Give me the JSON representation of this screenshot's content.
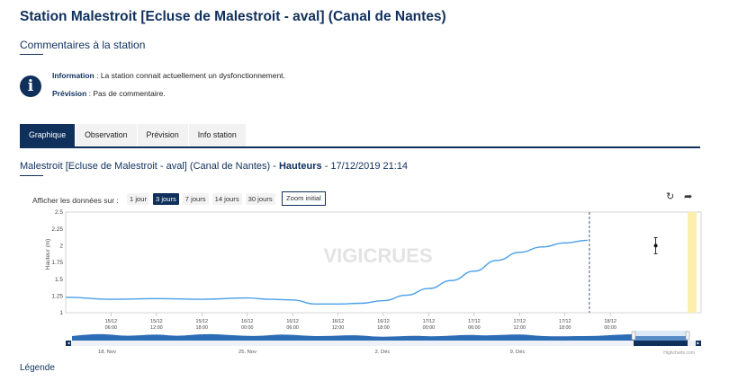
{
  "page": {
    "title": "Station Malestroit [Ecluse de Malestroit - aval] (Canal de Nantes)",
    "comments_heading": "Commentaires à la station",
    "info_icon": "info-circle-icon",
    "information_label": "Information",
    "information_text": " : La station connait actuellement un dysfonctionnement.",
    "prevision_label": "Prévision",
    "prevision_text": " : Pas de commentaire.",
    "legend_link": "Légende",
    "accent_color": "#10305c"
  },
  "tabs": [
    {
      "label": "Graphique",
      "active": true
    },
    {
      "label": "Observation",
      "active": false
    },
    {
      "label": "Prévision",
      "active": false
    },
    {
      "label": "Info station",
      "active": false
    }
  ],
  "chart_header": {
    "station": "Malestroit [Ecluse de Malestroit - aval] (Canal de Nantes) - ",
    "measure": "Hauteurs",
    "datetime": " - 17/12/2019 21:14"
  },
  "range_selector": {
    "label": "Afficher les données sur :",
    "buttons": [
      {
        "label": "1 jour",
        "active": false
      },
      {
        "label": "3 jours",
        "active": true
      },
      {
        "label": "7 jours",
        "active": false
      },
      {
        "label": "14 jours",
        "active": false
      },
      {
        "label": "30 jours",
        "active": false
      }
    ],
    "zoom_label": "Zoom initial",
    "refresh_icon": "refresh-icon",
    "export_icon": "share-arrow-icon"
  },
  "chart_data": {
    "type": "line",
    "watermark": "VIGICRUES",
    "ylabel": "Hauteur (m)",
    "ylim": [
      1,
      2.5
    ],
    "yticks": [
      "1",
      "1.25",
      "1.5",
      "1.75",
      "2",
      "2.25",
      "2.5"
    ],
    "xlim_hours": [
      0,
      84
    ],
    "xticks": [
      {
        "date": "15/12",
        "time": "06:00"
      },
      {
        "date": "15/12",
        "time": "12:00"
      },
      {
        "date": "15/12",
        "time": "18:00"
      },
      {
        "date": "16/12",
        "time": "00:00"
      },
      {
        "date": "16/12",
        "time": "06:00"
      },
      {
        "date": "16/12",
        "time": "12:00"
      },
      {
        "date": "16/12",
        "time": "18:00"
      },
      {
        "date": "17/12",
        "time": "00:00"
      },
      {
        "date": "17/12",
        "time": "06:00"
      },
      {
        "date": "17/12",
        "time": "12:00"
      },
      {
        "date": "17/12",
        "time": "18:00"
      },
      {
        "date": "18/12",
        "time": "00:00"
      }
    ],
    "series": [
      {
        "color": "#4a9fe8",
        "x": [
          "15/12 00:00",
          "15/12 06:00",
          "15/12 12:00",
          "15/12 18:00",
          "16/12 00:00",
          "16/12 03:00",
          "16/12 06:00",
          "16/12 09:00",
          "16/12 12:00",
          "16/12 15:00",
          "16/12 18:00",
          "16/12 21:00",
          "17/12 00:00",
          "17/12 03:00",
          "17/12 06:00",
          "17/12 09:00",
          "17/12 12:00",
          "17/12 15:00",
          "17/12 18:00",
          "17/12 21:00"
        ],
        "values": [
          1.23,
          1.2,
          1.21,
          1.2,
          1.22,
          1.2,
          1.19,
          1.13,
          1.13,
          1.14,
          1.18,
          1.26,
          1.36,
          1.48,
          1.62,
          1.78,
          1.9,
          1.98,
          2.04,
          2.08
        ]
      }
    ],
    "current_time_marker": "17/12 21:14",
    "forecast_point": {
      "x": "18/12 06:00",
      "value": 2.0,
      "low": 1.88,
      "high": 2.12
    },
    "navigator_labels": [
      "18. Nov",
      "25. Nov",
      "2. Déc",
      "9. Déc"
    ],
    "credits": "Highcharts.com"
  }
}
